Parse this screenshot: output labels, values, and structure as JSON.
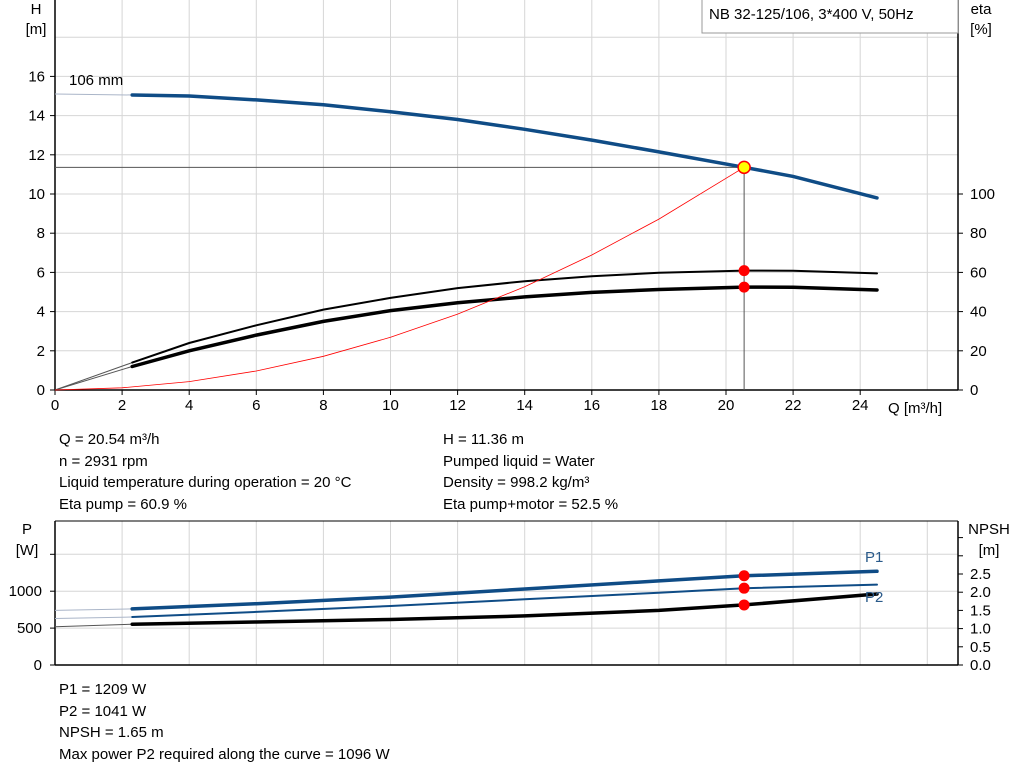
{
  "chart_data": [
    {
      "type": "line",
      "title": "NB 32-125/106, 3*400 V, 50Hz",
      "xlabel": "Q [m³/h]",
      "ylabel_left": [
        "H",
        "[m]"
      ],
      "ylabel_right": [
        "eta",
        "[%]"
      ],
      "xlim": [
        0,
        27
      ],
      "ylim_left": [
        0,
        20
      ],
      "ylim_right": [
        0,
        200
      ],
      "xticks": [
        0,
        2,
        4,
        6,
        8,
        10,
        12,
        14,
        16,
        18,
        20,
        22,
        24
      ],
      "yticks_left": [
        0,
        2,
        4,
        6,
        8,
        10,
        12,
        14,
        16
      ],
      "yticks_right": [
        0,
        20,
        40,
        60,
        80,
        100
      ],
      "grid": true,
      "curve_label": "106 mm",
      "series": [
        {
          "key": "H",
          "color": "#0f4c86",
          "extrap": [
            [
              0,
              15.1
            ],
            [
              2.3,
              15.05
            ]
          ],
          "points": [
            [
              2.3,
              15.05
            ],
            [
              4,
              15.0
            ],
            [
              6,
              14.8
            ],
            [
              8,
              14.55
            ],
            [
              10,
              14.2
            ],
            [
              12,
              13.8
            ],
            [
              14,
              13.3
            ],
            [
              16,
              12.75
            ],
            [
              18,
              12.15
            ],
            [
              20.54,
              11.36
            ],
            [
              22,
              10.9
            ],
            [
              24.5,
              9.8
            ]
          ]
        },
        {
          "key": "eta_pump",
          "axis": "right",
          "color": "#000000",
          "extrap": [
            [
              0,
              0
            ],
            [
              2.3,
              14
            ]
          ],
          "points": [
            [
              2.3,
              14
            ],
            [
              4,
              24
            ],
            [
              6,
              33
            ],
            [
              8,
              41
            ],
            [
              10,
              47
            ],
            [
              12,
              52
            ],
            [
              14,
              55.5
            ],
            [
              16,
              58
            ],
            [
              18,
              59.8
            ],
            [
              20.54,
              60.9
            ],
            [
              22,
              60.8
            ],
            [
              24.5,
              59.5
            ]
          ]
        },
        {
          "key": "eta_pump_motor",
          "axis": "right",
          "color": "#000000",
          "extrap": [
            [
              0,
              0
            ],
            [
              2.3,
              12
            ]
          ],
          "points": [
            [
              2.3,
              12
            ],
            [
              4,
              20
            ],
            [
              6,
              28
            ],
            [
              8,
              35
            ],
            [
              10,
              40.5
            ],
            [
              12,
              44.5
            ],
            [
              14,
              47.5
            ],
            [
              16,
              49.8
            ],
            [
              18,
              51.3
            ],
            [
              20.54,
              52.5
            ],
            [
              22,
              52.4
            ],
            [
              24.5,
              51
            ]
          ]
        },
        {
          "key": "system_curve",
          "color": "#ff0000",
          "points": [
            [
              0,
              0
            ],
            [
              2,
              0.11
            ],
            [
              4,
              0.43
            ],
            [
              6,
              0.97
            ],
            [
              8,
              1.72
            ],
            [
              10,
              2.69
            ],
            [
              12,
              3.87
            ],
            [
              14,
              5.27
            ],
            [
              16,
              6.89
            ],
            [
              18,
              8.72
            ],
            [
              20.54,
              11.36
            ]
          ]
        }
      ],
      "operating_point": {
        "Q": 20.54,
        "H": 11.36,
        "eta_pump": 60.9,
        "eta_pump_motor": 52.5,
        "fill": "#ffff00",
        "stroke": "#ff0000"
      }
    },
    {
      "type": "line",
      "ylabel_left": [
        "P",
        "[W]"
      ],
      "ylabel_right": [
        "NPSH",
        "[m]"
      ],
      "xlim": [
        0,
        27
      ],
      "ylim_left": [
        0,
        1950
      ],
      "ylim_right": [
        0,
        3.95
      ],
      "yticks_left": [
        0,
        500,
        1000
      ],
      "yticks_right": [
        "0.0",
        "0.5",
        "1.0",
        "1.5",
        "2.0",
        "2.5"
      ],
      "grid": true,
      "series": [
        {
          "name": "P1",
          "key": "P1",
          "color": "#0f4c86",
          "extrap": [
            [
              0,
              740
            ],
            [
              2.3,
              760
            ]
          ],
          "points": [
            [
              2.3,
              760
            ],
            [
              6,
              830
            ],
            [
              10,
              920
            ],
            [
              14,
              1030
            ],
            [
              18,
              1140
            ],
            [
              20.54,
              1209
            ],
            [
              24.5,
              1270
            ]
          ]
        },
        {
          "name": "P2",
          "key": "P2",
          "color": "#0f4c86",
          "extrap": [
            [
              0,
              630
            ],
            [
              2.3,
              650
            ]
          ],
          "points": [
            [
              2.3,
              650
            ],
            [
              6,
              720
            ],
            [
              10,
              800
            ],
            [
              14,
              890
            ],
            [
              18,
              980
            ],
            [
              20.54,
              1041
            ],
            [
              24.5,
              1090
            ]
          ]
        },
        {
          "key": "NPSH",
          "axis": "right",
          "color": "#000000",
          "extrap": [
            [
              0,
              1.05
            ],
            [
              2.3,
              1.12
            ]
          ],
          "points": [
            [
              2.3,
              1.12
            ],
            [
              6,
              1.18
            ],
            [
              10,
              1.25
            ],
            [
              14,
              1.35
            ],
            [
              18,
              1.5
            ],
            [
              20.54,
              1.65
            ],
            [
              24.5,
              1.95
            ]
          ]
        }
      ]
    }
  ],
  "info_top": {
    "left": [
      "Q = 20.54 m³/h",
      "n = 2931 rpm",
      "Liquid temperature during operation = 20 °C",
      "Eta pump = 60.9 %"
    ],
    "right": [
      "H = 11.36 m",
      "Pumped liquid = Water",
      "Density = 998.2 kg/m³",
      "Eta pump+motor = 52.5 %"
    ]
  },
  "info_bottom": [
    "P1 = 1209 W",
    "P2 = 1041 W",
    "NPSH = 1.65 m",
    "Max power P2 required along the curve = 1096 W"
  ]
}
